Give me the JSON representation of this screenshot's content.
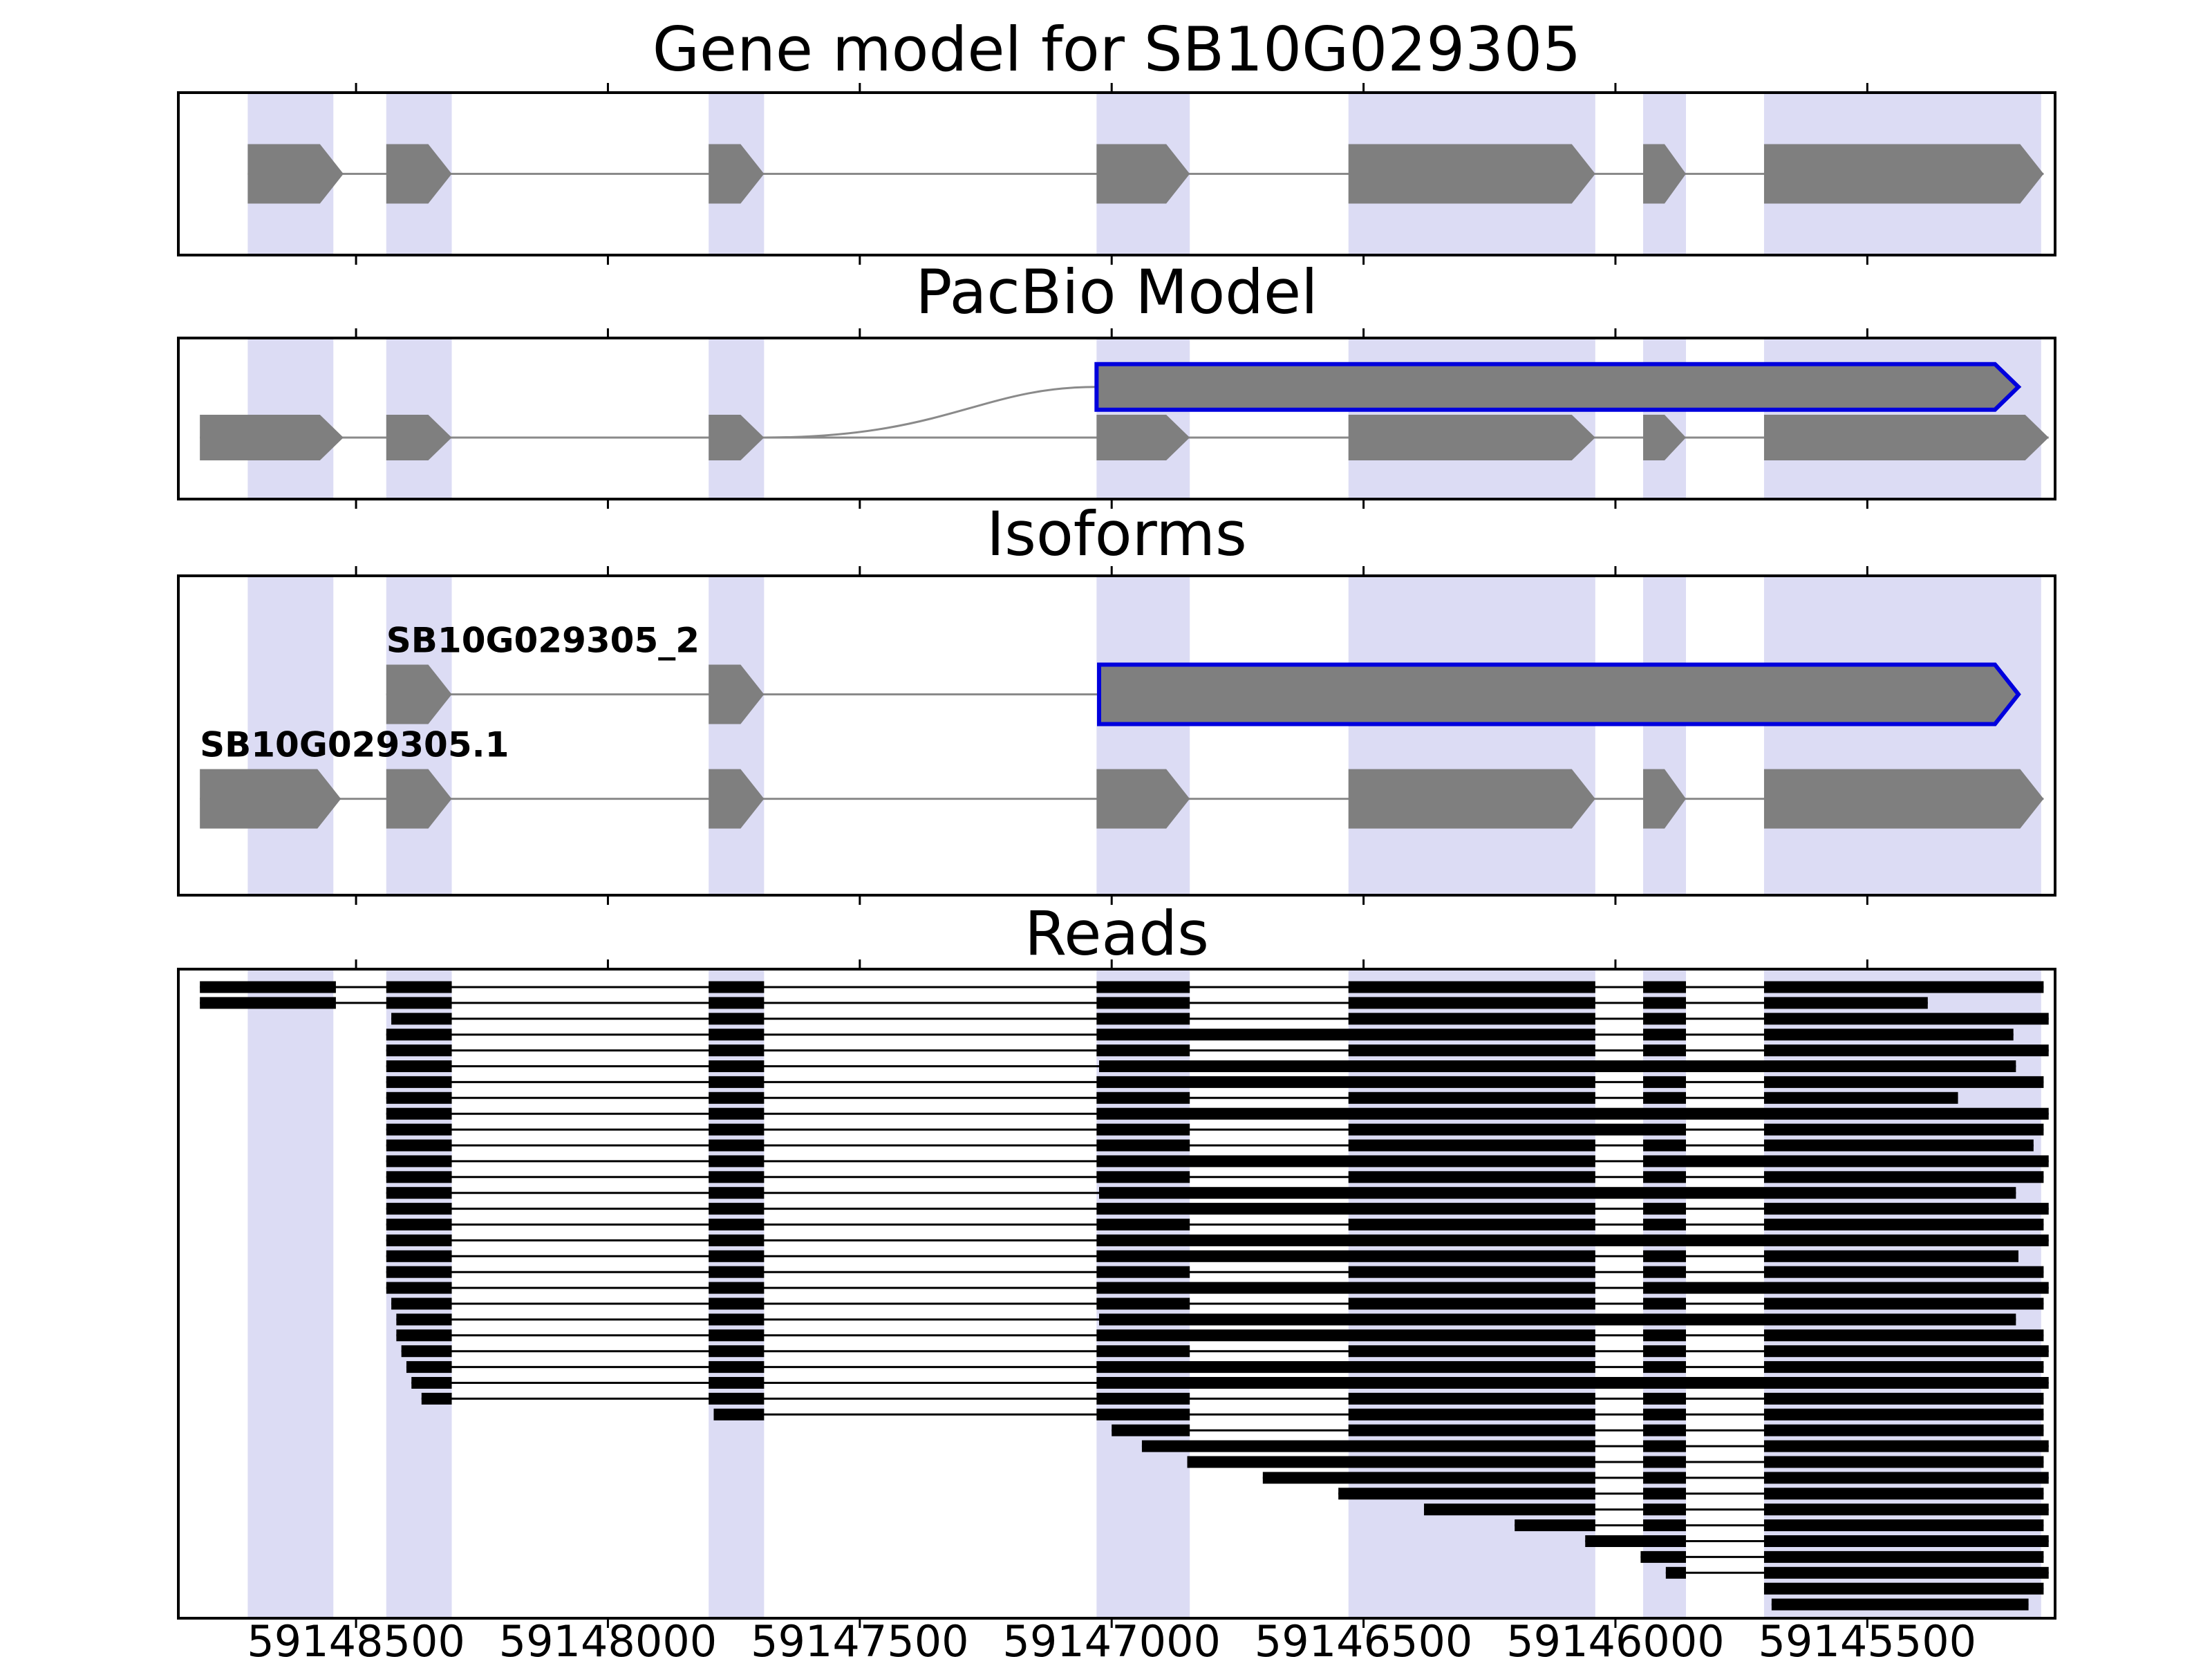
{
  "colors": {
    "background": "#ffffff",
    "panel_border": "#000000",
    "exon_fill": "#7f7f7f",
    "intron_line": "#8a8a8a",
    "highlight_band": "#dcdcf4",
    "novel_exon_outline": "#0000dd",
    "read_fill": "#000000",
    "tick": "#000000",
    "text": "#000000"
  },
  "chart_data": {
    "type": "genome-browser-tracks",
    "title": "Gene model for SB10G029305",
    "x_axis": {
      "left_bp": 59148850,
      "right_bp": 59145130,
      "decreasing_left_to_right": true,
      "tick_values": [
        59148500,
        59148000,
        59147500,
        59147000,
        59146500,
        59146000,
        59145500
      ],
      "tick_labels": [
        "59148500",
        "59148000",
        "59147500",
        "59147000",
        "59146500",
        "59146000",
        "59145500"
      ]
    },
    "highlight_bands_bp": [
      [
        59148715,
        59148545
      ],
      [
        59148440,
        59148310
      ],
      [
        59147800,
        59147690
      ],
      [
        59147030,
        59146845
      ],
      [
        59146530,
        59146040
      ],
      [
        59145945,
        59145860
      ],
      [
        59145705,
        59145155
      ]
    ],
    "tracks": {
      "gene_model": {
        "title": "Gene model for SB10G029305",
        "transcripts": [
          {
            "name": "SB10G029305",
            "row": 0.5,
            "exons": [
              [
                59148715,
                59148525
              ],
              [
                59148440,
                59148310
              ],
              [
                59147800,
                59147690
              ],
              [
                59147030,
                59146845
              ],
              [
                59146530,
                59146040
              ],
              [
                59145945,
                59145860
              ],
              [
                59145705,
                59145150
              ]
            ],
            "outlined_exons": []
          }
        ]
      },
      "pacbio": {
        "title": "PacBio Model",
        "transcripts": [
          {
            "name": "pacbio-novel-long-exon",
            "row": 0.3,
            "exons": [
              [
                59147030,
                59145200
              ]
            ],
            "outlined_exons": [
              0
            ]
          },
          {
            "name": "pacbio-reference",
            "row": 0.62,
            "exons": [
              [
                59148810,
                59148525
              ],
              [
                59148440,
                59148310
              ],
              [
                59147800,
                59147690
              ],
              [
                59147030,
                59146845
              ],
              [
                59146530,
                59146040
              ],
              [
                59145945,
                59145860
              ],
              [
                59145705,
                59145140
              ]
            ],
            "outlined_exons": []
          }
        ],
        "splice_curve": {
          "from_bp": 59147690,
          "from_row": 0.62,
          "to_bp": 59147030,
          "to_row": 0.3
        }
      },
      "isoforms": {
        "title": "Isoforms",
        "transcripts": [
          {
            "name": "SB10G029305_2",
            "label": "SB10G029305_2",
            "row": 0.37,
            "exons": [
              [
                59148440,
                59148310
              ],
              [
                59147800,
                59147690
              ],
              [
                59147025,
                59145200
              ]
            ],
            "outlined_exons": [
              2
            ]
          },
          {
            "name": "SB10G029305.1",
            "label": "SB10G029305.1",
            "row": 0.7,
            "exons": [
              [
                59148810,
                59148530
              ],
              [
                59148440,
                59148310
              ],
              [
                59147800,
                59147690
              ],
              [
                59147030,
                59146845
              ],
              [
                59146530,
                59146040
              ],
              [
                59145945,
                59145860
              ],
              [
                59145705,
                59145150
              ]
            ],
            "outlined_exons": []
          }
        ]
      },
      "reads": {
        "title": "Reads",
        "reads": [
          [
            [
              59148810,
              59148540
            ],
            [
              59148440,
              59148310
            ],
            [
              59147800,
              59147690
            ],
            [
              59147030,
              59146845
            ],
            [
              59146530,
              59146040
            ],
            [
              59145945,
              59145860
            ],
            [
              59145705,
              59145150
            ]
          ],
          [
            [
              59148810,
              59148540
            ],
            [
              59148440,
              59148310
            ],
            [
              59147800,
              59147690
            ],
            [
              59147030,
              59146845
            ],
            [
              59146530,
              59146040
            ],
            [
              59145945,
              59145860
            ],
            [
              59145705,
              59145380
            ]
          ],
          [
            [
              59148430,
              59148310
            ],
            [
              59147800,
              59147690
            ],
            [
              59147030,
              59146845
            ],
            [
              59146530,
              59146040
            ],
            [
              59145945,
              59145860
            ],
            [
              59145705,
              59145140
            ]
          ],
          [
            [
              59148440,
              59148310
            ],
            [
              59147800,
              59147690
            ],
            [
              59147030,
              59146040
            ],
            [
              59145945,
              59145860
            ],
            [
              59145705,
              59145210
            ]
          ],
          [
            [
              59148440,
              59148310
            ],
            [
              59147800,
              59147690
            ],
            [
              59147030,
              59146845
            ],
            [
              59146530,
              59146040
            ],
            [
              59145945,
              59145860
            ],
            [
              59145705,
              59145140
            ]
          ],
          [
            [
              59148440,
              59148310
            ],
            [
              59147800,
              59147690
            ],
            [
              59147025,
              59145205
            ]
          ],
          [
            [
              59148440,
              59148310
            ],
            [
              59147800,
              59147690
            ],
            [
              59147030,
              59146040
            ],
            [
              59145945,
              59145860
            ],
            [
              59145705,
              59145150
            ]
          ],
          [
            [
              59148440,
              59148310
            ],
            [
              59147800,
              59147690
            ],
            [
              59147030,
              59146845
            ],
            [
              59146530,
              59146040
            ],
            [
              59145945,
              59145860
            ],
            [
              59145705,
              59145320
            ]
          ],
          [
            [
              59148440,
              59148310
            ],
            [
              59147800,
              59147690
            ],
            [
              59147030,
              59145140
            ]
          ],
          [
            [
              59148440,
              59148310
            ],
            [
              59147800,
              59147690
            ],
            [
              59147030,
              59146845
            ],
            [
              59146530,
              59145860
            ],
            [
              59145705,
              59145150
            ]
          ],
          [
            [
              59148440,
              59148310
            ],
            [
              59147800,
              59147690
            ],
            [
              59147030,
              59146845
            ],
            [
              59146530,
              59146040
            ],
            [
              59145945,
              59145860
            ],
            [
              59145705,
              59145170
            ]
          ],
          [
            [
              59148440,
              59148310
            ],
            [
              59147800,
              59147690
            ],
            [
              59147030,
              59146040
            ],
            [
              59145945,
              59145140
            ]
          ],
          [
            [
              59148440,
              59148310
            ],
            [
              59147800,
              59147690
            ],
            [
              59147030,
              59146845
            ],
            [
              59146530,
              59146040
            ],
            [
              59145945,
              59145860
            ],
            [
              59145705,
              59145150
            ]
          ],
          [
            [
              59148440,
              59148310
            ],
            [
              59147800,
              59147690
            ],
            [
              59147025,
              59145205
            ]
          ],
          [
            [
              59148440,
              59148310
            ],
            [
              59147800,
              59147690
            ],
            [
              59147030,
              59146040
            ],
            [
              59145945,
              59145860
            ],
            [
              59145705,
              59145140
            ]
          ],
          [
            [
              59148440,
              59148310
            ],
            [
              59147800,
              59147690
            ],
            [
              59147030,
              59146845
            ],
            [
              59146530,
              59146040
            ],
            [
              59145945,
              59145860
            ],
            [
              59145705,
              59145150
            ]
          ],
          [
            [
              59148440,
              59148310
            ],
            [
              59147800,
              59147690
            ],
            [
              59147030,
              59145140
            ]
          ],
          [
            [
              59148440,
              59148310
            ],
            [
              59147800,
              59147690
            ],
            [
              59147030,
              59146040
            ],
            [
              59145945,
              59145860
            ],
            [
              59145705,
              59145200
            ]
          ],
          [
            [
              59148440,
              59148310
            ],
            [
              59147800,
              59147690
            ],
            [
              59147030,
              59146845
            ],
            [
              59146530,
              59146040
            ],
            [
              59145945,
              59145860
            ],
            [
              59145705,
              59145150
            ]
          ],
          [
            [
              59148440,
              59148310
            ],
            [
              59147800,
              59147690
            ],
            [
              59147030,
              59146040
            ],
            [
              59145945,
              59145140
            ]
          ],
          [
            [
              59148430,
              59148310
            ],
            [
              59147800,
              59147690
            ],
            [
              59147030,
              59146845
            ],
            [
              59146530,
              59146040
            ],
            [
              59145945,
              59145860
            ],
            [
              59145705,
              59145150
            ]
          ],
          [
            [
              59148420,
              59148310
            ],
            [
              59147800,
              59147690
            ],
            [
              59147025,
              59145205
            ]
          ],
          [
            [
              59148420,
              59148310
            ],
            [
              59147800,
              59147690
            ],
            [
              59147030,
              59146040
            ],
            [
              59145945,
              59145860
            ],
            [
              59145705,
              59145150
            ]
          ],
          [
            [
              59148410,
              59148310
            ],
            [
              59147800,
              59147690
            ],
            [
              59147030,
              59146845
            ],
            [
              59146530,
              59146040
            ],
            [
              59145945,
              59145860
            ],
            [
              59145705,
              59145140
            ]
          ],
          [
            [
              59148400,
              59148310
            ],
            [
              59147800,
              59147690
            ],
            [
              59147030,
              59146040
            ],
            [
              59145945,
              59145860
            ],
            [
              59145705,
              59145150
            ]
          ],
          [
            [
              59148390,
              59148310
            ],
            [
              59147800,
              59147690
            ],
            [
              59147030,
              59145140
            ]
          ],
          [
            [
              59148370,
              59148310
            ],
            [
              59147800,
              59147690
            ],
            [
              59147030,
              59146845
            ],
            [
              59146530,
              59146040
            ],
            [
              59145945,
              59145860
            ],
            [
              59145705,
              59145150
            ]
          ],
          [
            [
              59147790,
              59147690
            ],
            [
              59147030,
              59146845
            ],
            [
              59146530,
              59146040
            ],
            [
              59145945,
              59145860
            ],
            [
              59145705,
              59145150
            ]
          ],
          [
            [
              59147000,
              59146845
            ],
            [
              59146530,
              59146040
            ],
            [
              59145945,
              59145860
            ],
            [
              59145705,
              59145150
            ]
          ],
          [
            [
              59146940,
              59146040
            ],
            [
              59145945,
              59145860
            ],
            [
              59145705,
              59145140
            ]
          ],
          [
            [
              59146850,
              59146040
            ],
            [
              59145945,
              59145860
            ],
            [
              59145705,
              59145150
            ]
          ],
          [
            [
              59146700,
              59146040
            ],
            [
              59145945,
              59145860
            ],
            [
              59145705,
              59145140
            ]
          ],
          [
            [
              59146550,
              59146040
            ],
            [
              59145945,
              59145860
            ],
            [
              59145705,
              59145150
            ]
          ],
          [
            [
              59146380,
              59146040
            ],
            [
              59145945,
              59145860
            ],
            [
              59145705,
              59145140
            ]
          ],
          [
            [
              59146200,
              59146040
            ],
            [
              59145945,
              59145860
            ],
            [
              59145705,
              59145150
            ]
          ],
          [
            [
              59146060,
              59145860
            ],
            [
              59145705,
              59145140
            ]
          ],
          [
            [
              59145950,
              59145860
            ],
            [
              59145705,
              59145150
            ]
          ],
          [
            [
              59145900,
              59145860
            ],
            [
              59145705,
              59145140
            ]
          ],
          [
            [
              59145705,
              59145150
            ]
          ],
          [
            [
              59145690,
              59145180
            ]
          ]
        ]
      }
    }
  }
}
